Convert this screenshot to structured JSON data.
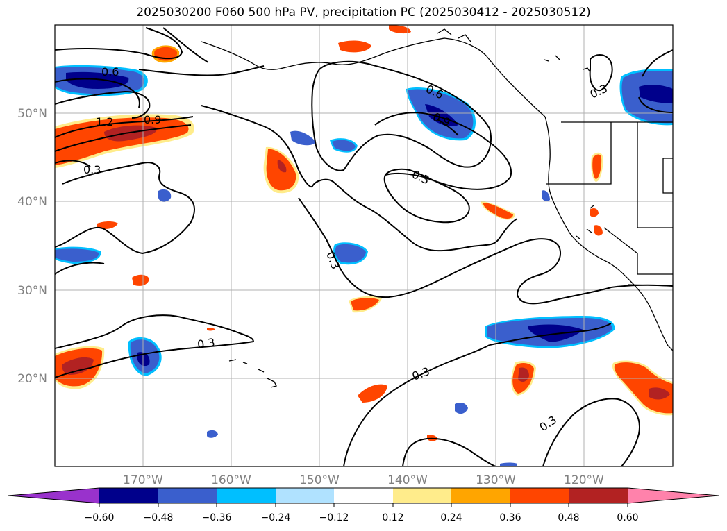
{
  "title": "2025030200 F060 500 hPa PV, precipitation PC (2025030412 - 2025030512)",
  "map": {
    "lat_labels": [
      "50°N",
      "40°N",
      "30°N",
      "20°N"
    ],
    "lon_labels": [
      "170°W",
      "160°W",
      "150°W",
      "140°W",
      "130°W",
      "120°W"
    ],
    "extent": {
      "lon_min": -180,
      "lon_max": -110,
      "lat_min": 10,
      "lat_max": 60
    },
    "grid": true,
    "contour_field": "500 hPa PV",
    "contour_labels": [
      "0.6",
      "1.2",
      "0.9",
      "0.3",
      "0.6",
      "0.9",
      "0.3",
      "0.3",
      "0.3",
      "0.3",
      "0.3",
      "0.3"
    ],
    "shaded_field": "precipitation PC"
  },
  "colorbar": {
    "ticks": [
      "−0.60",
      "−0.48",
      "−0.36",
      "−0.24",
      "−0.12",
      "0.12",
      "0.24",
      "0.36",
      "0.48",
      "0.60"
    ],
    "colors": [
      "#9932cc",
      "#00008b",
      "#3a5fcd",
      "#00bfff",
      "#b0e2ff",
      "#ffffff",
      "#ffec8b",
      "#ffa500",
      "#ff4500",
      "#b22222",
      "#ff82ab"
    ],
    "extend": "both"
  }
}
